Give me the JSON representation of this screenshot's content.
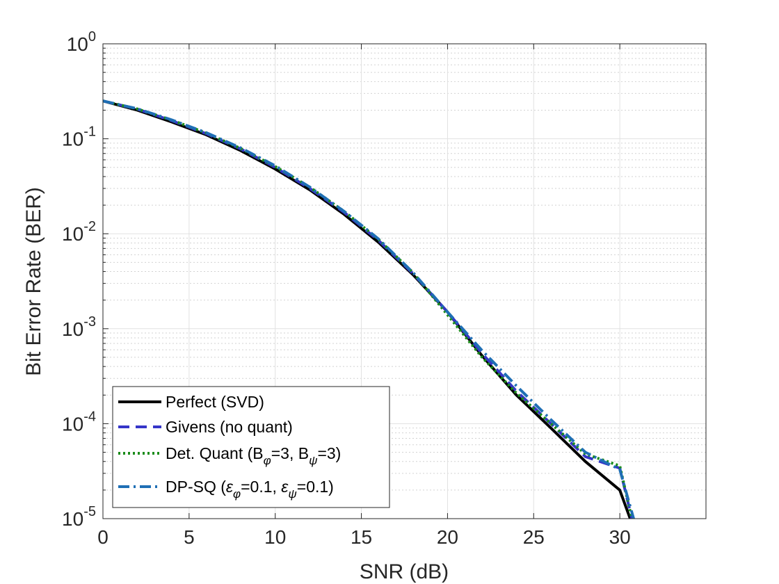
{
  "chart_data": {
    "type": "line",
    "xlabel": "SNR (dB)",
    "ylabel": "Bit Error Rate (BER)",
    "xlim": [
      0,
      35
    ],
    "ylim": [
      1e-05,
      1
    ],
    "yscale": "log",
    "grid": true,
    "minor_grid": true,
    "legend_location": "bottom-left",
    "x_ticks": [
      0,
      5,
      10,
      15,
      20,
      25,
      30
    ],
    "x_tick_labels": [
      "0",
      "5",
      "10",
      "15",
      "20",
      "25",
      "30"
    ],
    "y_ticks": [
      {
        "value": 1,
        "base": "10",
        "exp": "0"
      },
      {
        "value": 0.1,
        "base": "10",
        "exp": "-1"
      },
      {
        "value": 0.01,
        "base": "10",
        "exp": "-2"
      },
      {
        "value": 0.001,
        "base": "10",
        "exp": "-3"
      },
      {
        "value": 0.0001,
        "base": "10",
        "exp": "-4"
      },
      {
        "value": 1e-05,
        "base": "10",
        "exp": "-5"
      }
    ],
    "series": [
      {
        "name": "Perfect (SVD)",
        "legend_parts": [
          {
            "t": "Perfect (SVD)"
          }
        ],
        "color": "#000000",
        "dash": "solid",
        "x": [
          0,
          2,
          4,
          6,
          8,
          10,
          12,
          14,
          16,
          18,
          20,
          22,
          24,
          26,
          28,
          30,
          30.6
        ],
        "y": [
          0.25,
          0.2,
          0.15,
          0.11,
          0.075,
          0.048,
          0.029,
          0.016,
          0.0081,
          0.0037,
          0.0015,
          0.00052,
          0.0002,
          9e-05,
          4e-05,
          2e-05,
          1e-05
        ]
      },
      {
        "name": "Givens (no quant)",
        "legend_parts": [
          {
            "t": "Givens (no quant)"
          }
        ],
        "color": "#3535c8",
        "dash": "dashed",
        "x": [
          0,
          2,
          4,
          6,
          8,
          10,
          12,
          14,
          16,
          18,
          20,
          22,
          24,
          26,
          28,
          30,
          30.7
        ],
        "y": [
          0.25,
          0.205,
          0.155,
          0.113,
          0.078,
          0.05,
          0.03,
          0.0168,
          0.0085,
          0.0038,
          0.0015,
          0.00055,
          0.00022,
          0.0001,
          4.5e-05,
          3.4e-05,
          1e-05
        ]
      },
      {
        "name": "Det. Quant (Bφ=3, Bψ=3)",
        "legend_parts": [
          {
            "t": "Det. Quant (B"
          },
          {
            "t": "φ",
            "sub": true
          },
          {
            "t": "=3, B"
          },
          {
            "t": "ψ",
            "sub": true
          },
          {
            "t": "=3)"
          }
        ],
        "color": "#1a8c1a",
        "dash": "dotted",
        "x": [
          0,
          2,
          4,
          6,
          8,
          10,
          12,
          14,
          16,
          18,
          20,
          22,
          24,
          26,
          28,
          30,
          30.7
        ],
        "y": [
          0.25,
          0.206,
          0.157,
          0.115,
          0.079,
          0.051,
          0.031,
          0.0172,
          0.0087,
          0.0039,
          0.0014,
          0.0005,
          0.00021,
          0.0001,
          4.8e-05,
          3.6e-05,
          1e-05
        ]
      },
      {
        "name": "DP-SQ (εφ=0.1, εψ=0.1)",
        "legend_parts": [
          {
            "t": "DP-SQ ("
          },
          {
            "t": "ε",
            "italic": true
          },
          {
            "t": "φ",
            "sub": true
          },
          {
            "t": "=0.1, "
          },
          {
            "t": "ε",
            "italic": true
          },
          {
            "t": "ψ",
            "sub": true
          },
          {
            "t": "=0.1)"
          }
        ],
        "color": "#1f6fb5",
        "dash": "dashdot",
        "x": [
          0,
          2,
          4,
          6,
          8,
          10,
          12,
          14,
          16,
          18,
          20,
          22,
          24,
          26,
          28,
          30,
          30.8
        ],
        "y": [
          0.25,
          0.207,
          0.158,
          0.116,
          0.08,
          0.052,
          0.031,
          0.0172,
          0.0088,
          0.0039,
          0.0015,
          0.00059,
          0.00025,
          0.00011,
          5e-05,
          3.3e-05,
          1e-05
        ]
      }
    ]
  }
}
